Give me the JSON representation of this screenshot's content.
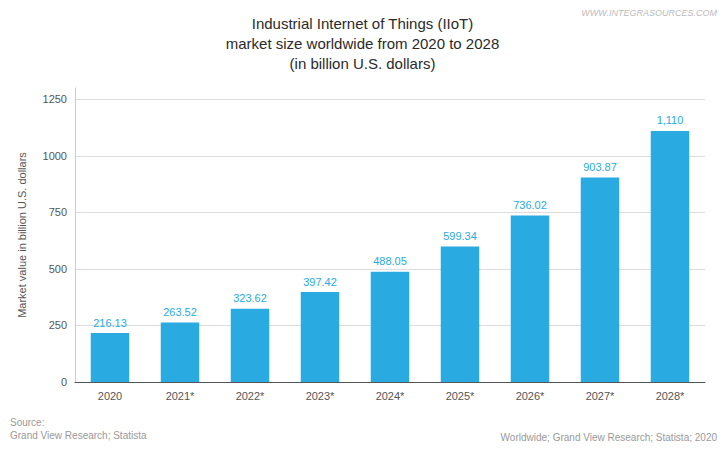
{
  "chart_data": {
    "type": "bar",
    "title": "Industrial Internet of Things (IIoT)\nmarket size worldwide from 2020 to 2028\n(in billion U.S. dollars)",
    "ylabel": "Market value in billion U.S. dollars",
    "categories": [
      "2020",
      "2021*",
      "2022*",
      "2023*",
      "2024*",
      "2025*",
      "2026*",
      "2027*",
      "2028*"
    ],
    "values": [
      216.13,
      263.52,
      323.62,
      397.42,
      488.05,
      599.34,
      736.02,
      903.87,
      1110
    ],
    "value_labels": [
      "216.13",
      "263.52",
      "323.62",
      "397.42",
      "488.05",
      "599.34",
      "736.02",
      "903.87",
      "1,110"
    ],
    "data_labels": true,
    "color": "#29ABE2",
    "ylim": [
      0,
      1300
    ],
    "yticks": [
      0,
      250,
      500,
      750,
      1000,
      1250
    ],
    "grid": true,
    "annotations": [
      "Source:\nGrand View Research; Statista",
      "Worldwide; Grand View Research; Statista; 2020",
      "WWW.INTEGRASOURCES.COM"
    ]
  }
}
